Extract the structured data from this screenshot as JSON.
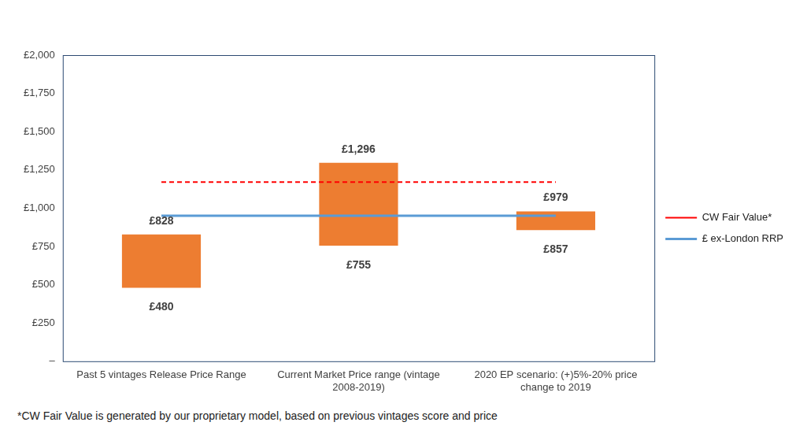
{
  "chart_data": {
    "type": "bar",
    "categories": [
      "Past 5 vintages Release Price Range",
      "Current Market Price range (vintage 2008-2019)",
      "2020 EP scenario: (+)5%-20% price change to 2019"
    ],
    "series": [
      {
        "type": "bar",
        "color": "#ed7d31",
        "values": [
          [
            480,
            828
          ],
          [
            755,
            1296
          ],
          [
            857,
            979
          ]
        ],
        "value_labels": [
          [
            "£480",
            "£828"
          ],
          [
            "£755",
            "£1,296"
          ],
          [
            "£857",
            "£979"
          ]
        ]
      },
      {
        "name": "CW Fair Value*",
        "type": "line",
        "line_style": "dashed",
        "color": "#ff0000",
        "values": [
          1170,
          1170,
          1170
        ]
      },
      {
        "name": "£ ex-London RRP",
        "type": "line",
        "line_style": "solid",
        "color": "#5b9bd5",
        "values": [
          950,
          950,
          950
        ]
      }
    ],
    "ylim": [
      0,
      2000
    ],
    "yticks": [
      {
        "value": 0,
        "label": "–"
      },
      {
        "value": 250,
        "label": "£250"
      },
      {
        "value": 500,
        "label": "£500"
      },
      {
        "value": 750,
        "label": "£750"
      },
      {
        "value": 1000,
        "label": "£1,000"
      },
      {
        "value": 1250,
        "label": "£1,250"
      },
      {
        "value": 1500,
        "label": "£1,500"
      },
      {
        "value": 1750,
        "label": "£1,750"
      },
      {
        "value": 2000,
        "label": "£2,000"
      }
    ],
    "grid": false,
    "legend": "right",
    "data_labels": true,
    "annotations": [
      "*CW Fair Value is generated by our proprietary model, based on previous vintages score and price"
    ]
  }
}
